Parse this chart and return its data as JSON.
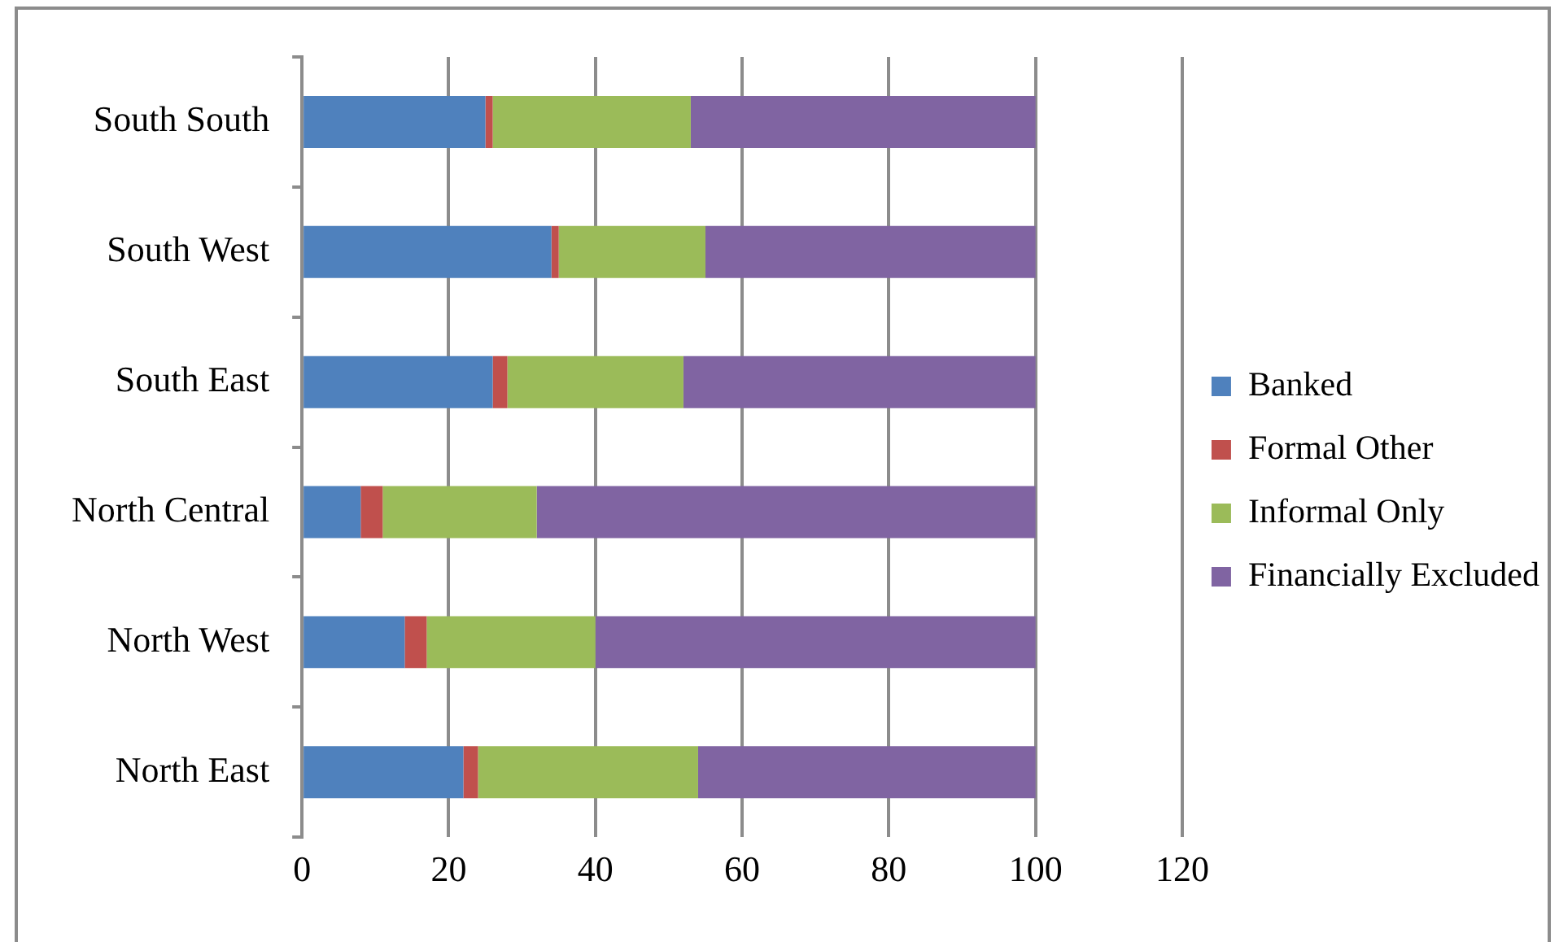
{
  "chart_data": {
    "type": "bar",
    "orientation": "horizontal",
    "stacked": true,
    "categories": [
      "South South",
      "South West",
      "South East",
      "North Central",
      "North West",
      "North East"
    ],
    "series": [
      {
        "name": "Banked",
        "color": "#4f81bd",
        "values": [
          25,
          34,
          26,
          8,
          14,
          22
        ]
      },
      {
        "name": "Formal Other",
        "color": "#c0504d",
        "values": [
          1,
          1,
          2,
          3,
          3,
          2
        ]
      },
      {
        "name": "Informal Only",
        "color": "#9bbb59",
        "values": [
          27,
          20,
          24,
          21,
          23,
          30
        ]
      },
      {
        "name": "Financially Excluded",
        "color": "#8064a2",
        "values": [
          47,
          45,
          48,
          68,
          60,
          46
        ]
      }
    ],
    "xlim": [
      0,
      120
    ],
    "xticks": [
      0,
      20,
      40,
      60,
      80,
      100,
      120
    ],
    "grid": "x",
    "legend": "right"
  }
}
